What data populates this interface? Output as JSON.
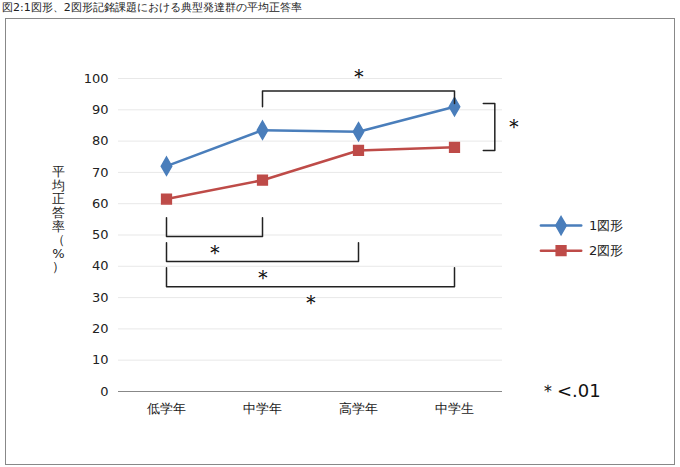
{
  "chart_data": {
    "type": "line",
    "title": "図2:1図形、2図形記銘課題における典型発達群の平均正答率",
    "y_label": "平均正答率（%）",
    "categories": [
      "低学年",
      "中学年",
      "高学年",
      "中学生"
    ],
    "series": [
      {
        "name": "1図形",
        "color": "#4a7ebb",
        "marker": "diamond",
        "values": [
          72,
          83.5,
          83,
          91
        ]
      },
      {
        "name": "2図形",
        "color": "#be4b48",
        "marker": "square",
        "values": [
          61.5,
          67.5,
          77,
          78
        ]
      }
    ],
    "ylim": [
      0,
      100
    ],
    "yticks": [
      0,
      10,
      20,
      30,
      40,
      50,
      60,
      70,
      80,
      90,
      100
    ],
    "grid": true,
    "legend": "right",
    "annotations": [
      {
        "text": "＊",
        "series": "1図形",
        "from": "中学年",
        "to": "中学生"
      },
      {
        "text": "＊",
        "across": [
          "1図形",
          "2図形"
        ],
        "at": "中学生"
      },
      {
        "text": "＊",
        "series": "2図形",
        "from": "低学年",
        "to": "中学年"
      },
      {
        "text": "＊",
        "series": "2図形",
        "from": "低学年",
        "to": "高学年"
      },
      {
        "text": "＊",
        "series": "2図形",
        "from": "低学年",
        "to": "中学生"
      }
    ],
    "note": "＊<.01"
  }
}
